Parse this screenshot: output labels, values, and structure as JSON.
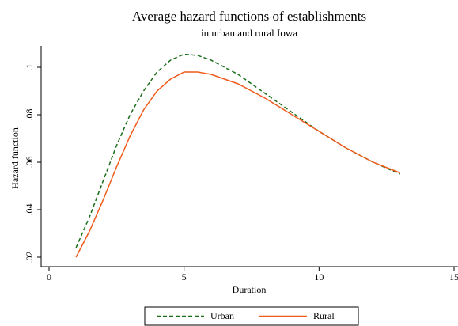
{
  "chart_data": {
    "type": "line",
    "title": "Average hazard functions of establishments",
    "subtitle": "in urban and rural Iowa",
    "x_label": "Duration",
    "y_label": "Hazard function",
    "x": [
      1,
      1.5,
      2,
      2.5,
      3,
      3.5,
      4,
      4.5,
      5,
      5.5,
      6,
      7,
      8,
      9,
      10,
      11,
      12,
      13
    ],
    "series": [
      {
        "name": "Urban",
        "color": "#1a6e1a",
        "dash": true,
        "values": [
          0.024,
          0.037,
          0.052,
          0.067,
          0.08,
          0.09,
          0.098,
          0.103,
          0.1055,
          0.105,
          0.103,
          0.097,
          0.089,
          0.081,
          0.073,
          0.066,
          0.06,
          0.055
        ]
      },
      {
        "name": "Rural",
        "color": "#f05a1a",
        "dash": false,
        "values": [
          0.02,
          0.031,
          0.044,
          0.058,
          0.071,
          0.082,
          0.09,
          0.095,
          0.098,
          0.098,
          0.097,
          0.093,
          0.087,
          0.08,
          0.073,
          0.066,
          0.06,
          0.0555
        ]
      }
    ],
    "xlim": [
      0,
      15
    ],
    "xticks": [
      0,
      5,
      10,
      15
    ],
    "ylim": [
      0.016,
      0.109
    ],
    "yticks": [
      {
        "value": 0.02,
        "label": ".02"
      },
      {
        "value": 0.04,
        "label": ".04"
      },
      {
        "value": 0.06,
        "label": ".06"
      },
      {
        "value": 0.08,
        "label": ".08"
      },
      {
        "value": 0.1,
        "label": ".1"
      }
    ],
    "legend": "bottom"
  }
}
